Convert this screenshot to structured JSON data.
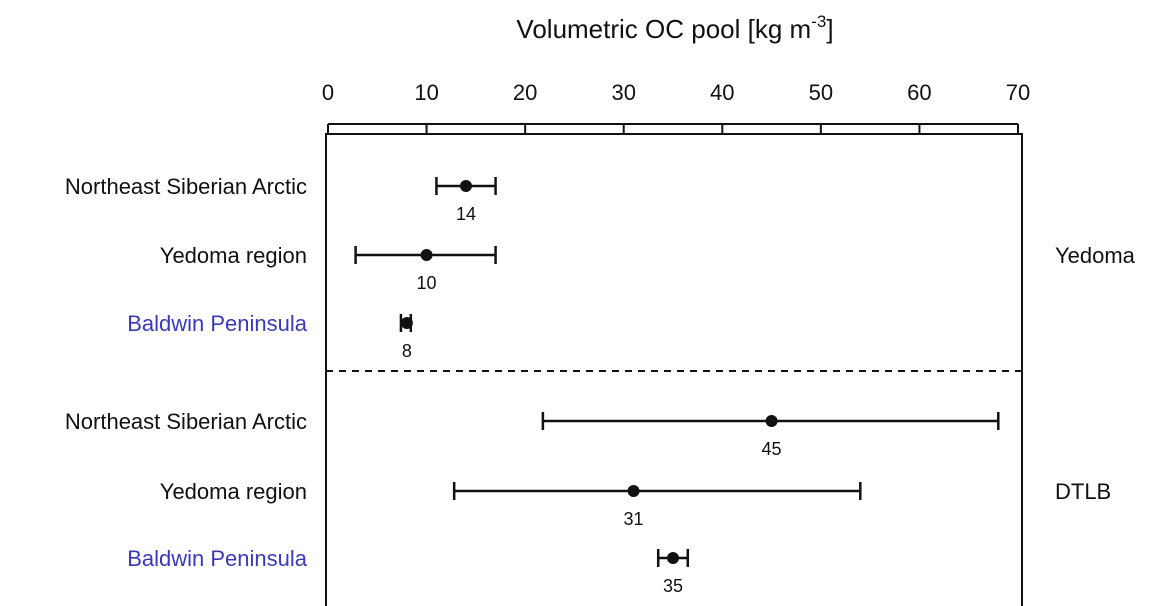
{
  "chart_data": {
    "type": "dot-errorbar",
    "title": "Volumetric OC pool [kg m",
    "title_superscript": "-3",
    "title_suffix": "]",
    "xlim": [
      0,
      70
    ],
    "x_ticks": [
      0,
      10,
      20,
      30,
      40,
      50,
      60,
      70
    ],
    "x_axis_position": "top",
    "grid": false,
    "groups": [
      {
        "name": "Yedoma",
        "rows": [
          0,
          1,
          2
        ]
      },
      {
        "name": "DTLB",
        "rows": [
          3,
          4,
          5
        ]
      }
    ],
    "rows": [
      {
        "label": "Northeast Siberian Arctic",
        "value": 14,
        "lower": 11,
        "upper": 17,
        "value_label": "14",
        "label_color": "#111111"
      },
      {
        "label": "Yedoma region",
        "value": 10,
        "lower": 2.8,
        "upper": 17,
        "value_label": "10",
        "label_color": "#111111"
      },
      {
        "label": "Baldwin Peninsula",
        "value": 8,
        "lower": 7.4,
        "upper": 8.4,
        "value_label": "8",
        "label_color": "#3a3ab8"
      },
      {
        "label": "Northeast Siberian Arctic",
        "value": 45,
        "lower": 21.8,
        "upper": 68,
        "value_label": "45",
        "label_color": "#111111"
      },
      {
        "label": "Yedoma region",
        "value": 31,
        "lower": 12.8,
        "upper": 54,
        "value_label": "31",
        "label_color": "#111111"
      },
      {
        "label": "Baldwin Peninsula",
        "value": 35,
        "lower": 33.5,
        "upper": 36.5,
        "value_label": "35",
        "label_color": "#3a3ab8"
      }
    ]
  }
}
